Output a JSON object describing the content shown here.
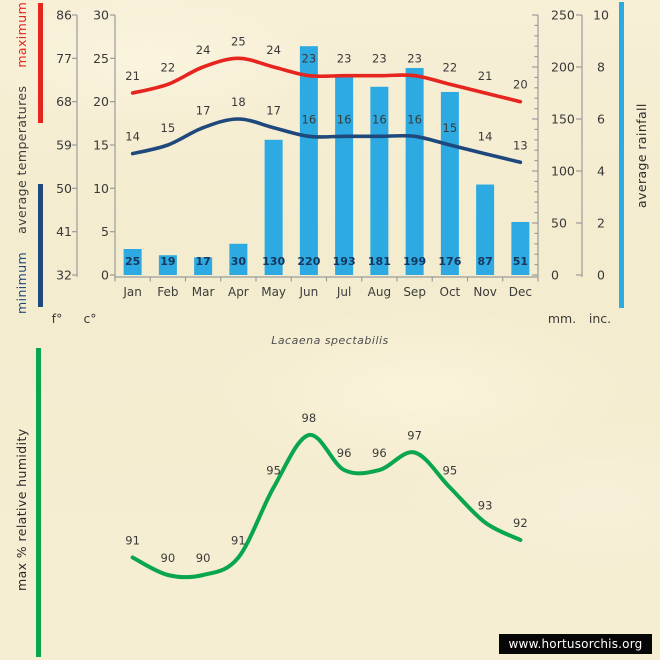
{
  "page": {
    "caption": "Lacaena spectabilis",
    "watermark": "www.hortusorchis.org",
    "background_color": "#f4ecce"
  },
  "chart_data": [
    {
      "type": "bar",
      "subtype": "climate-combo-temperature-rainfall",
      "categories": [
        "Jan",
        "Feb",
        "Mar",
        "Apr",
        "May",
        "Jun",
        "Jul",
        "Aug",
        "Sep",
        "Oct",
        "Nov",
        "Dec"
      ],
      "series": [
        {
          "name": "maximum temperature",
          "render": "line",
          "unit": "°C",
          "color": "#e6251f",
          "values": [
            21,
            22,
            24,
            25,
            24,
            23,
            23,
            23,
            23,
            22,
            21,
            20
          ]
        },
        {
          "name": "minimum temperature",
          "render": "line",
          "unit": "°C",
          "color": "#1f497d",
          "values": [
            14,
            15,
            17,
            18,
            17,
            16,
            16,
            16,
            16,
            15,
            14,
            13
          ]
        },
        {
          "name": "average rainfall",
          "render": "bar",
          "unit": "mm",
          "color": "#2caae1",
          "values": [
            25,
            19,
            17,
            30,
            130,
            220,
            193,
            181,
            199,
            176,
            87,
            51
          ]
        }
      ],
      "axes": {
        "fahrenheit": {
          "label": "f°",
          "ticks": [
            86,
            77,
            68,
            59,
            50,
            41,
            32
          ]
        },
        "celsius": {
          "label": "c°",
          "ticks": [
            30,
            25,
            20,
            15,
            10,
            5,
            0
          ],
          "range": [
            0,
            30
          ]
        },
        "millimeters": {
          "label": "mm.",
          "ticks": [
            250,
            200,
            150,
            100,
            50,
            0
          ],
          "range": [
            0,
            250
          ]
        },
        "inches": {
          "label": "inc.",
          "ticks": [
            10,
            8,
            6,
            4,
            2,
            0
          ],
          "range": [
            0,
            10
          ]
        }
      },
      "side_labels": {
        "left_parts": [
          {
            "text": "minimum",
            "color": "#1f497d"
          },
          {
            "text": "average temperatures",
            "color": "#3d3d3d"
          },
          {
            "text": "maximum",
            "color": "#e6251f"
          }
        ],
        "right": "average rainfall"
      },
      "grid": false,
      "legend_position": "none"
    },
    {
      "type": "line",
      "subtype": "humidity-curve",
      "series": [
        {
          "name": "max % relative humidity",
          "color": "#0aa64e",
          "values": [
            91,
            90,
            90,
            91,
            95,
            98,
            96,
            96,
            97,
            95,
            93,
            92
          ]
        }
      ],
      "ylabel": "max % relative humidity",
      "point_labels_visible": true,
      "axes_visible": false
    }
  ]
}
